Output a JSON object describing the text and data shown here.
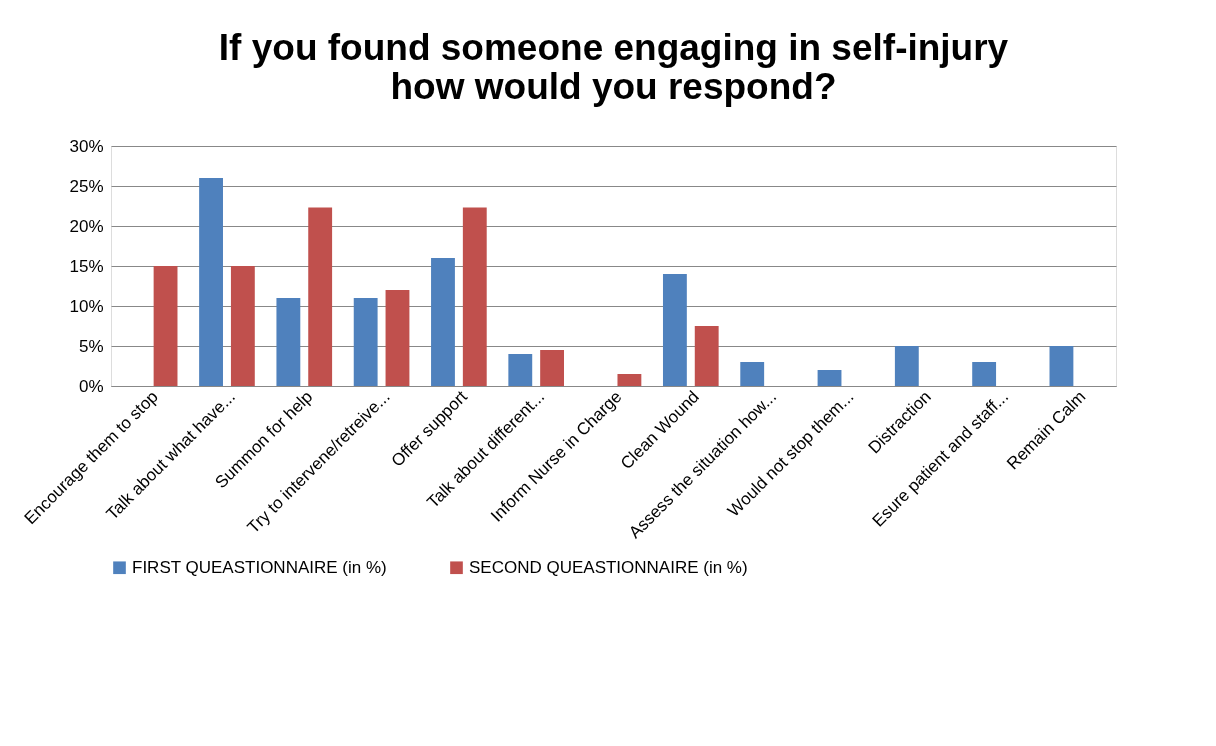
{
  "chart_data": {
    "type": "bar",
    "title": [
      "If you found someone engaging in self-injury",
      "how would you respond?"
    ],
    "categories": [
      "Encourage them to stop",
      "Talk about what have...",
      "Summon for help",
      "Try to intervene/retreive...",
      "Offer support",
      "Talk about different...",
      "Inform Nurse in Charge",
      "Clean Wound",
      "Assess the situation how...",
      "Would not stop them...",
      "Distraction",
      "Esure patient and staff...",
      "Remain Calm"
    ],
    "series": [
      {
        "name": "FIRST QUEASTIONNAIRE (in %)",
        "color": "#4f81bd",
        "values": [
          0,
          26,
          11,
          11,
          16,
          4,
          0,
          14,
          3,
          2,
          5,
          3,
          5
        ]
      },
      {
        "name": "SECOND QUEASTIONNAIRE (in %)",
        "color": "#c0504d",
        "values": [
          15,
          15,
          22.3,
          12,
          22.3,
          4.5,
          1.5,
          7.5,
          0,
          0,
          0,
          0,
          0
        ]
      }
    ],
    "ylim": [
      0,
      30
    ],
    "yticks": [
      {
        "value": 0,
        "label": "0%"
      },
      {
        "value": 5,
        "label": "5%"
      },
      {
        "value": 10,
        "label": "10%"
      },
      {
        "value": 15,
        "label": "15%"
      },
      {
        "value": 20,
        "label": "20%"
      },
      {
        "value": 25,
        "label": "25%"
      },
      {
        "value": 30,
        "label": "30%"
      }
    ],
    "grid": "y",
    "legend": "bottom"
  }
}
